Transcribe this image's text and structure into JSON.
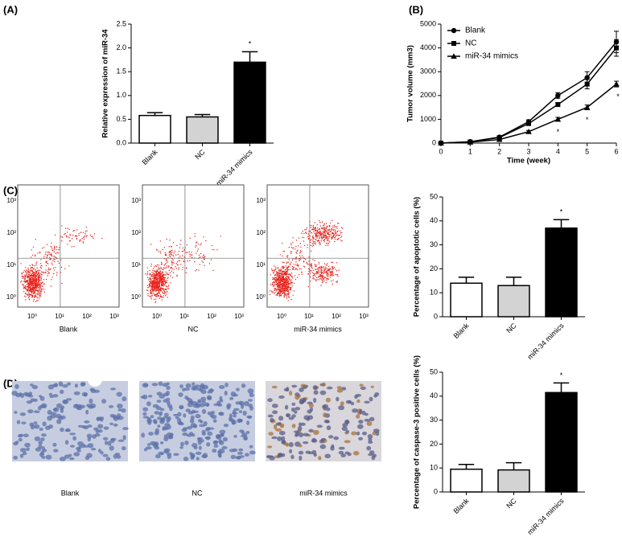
{
  "panel_labels": [
    "(A)",
    "(B)",
    "(C)",
    "(D)"
  ],
  "chart_data": [
    {
      "type": "bar",
      "y_label": "Relative expression  of miR-34",
      "categories": [
        "Blank",
        "NC",
        "miR-34 mimics"
      ],
      "values": [
        0.58,
        0.55,
        1.7
      ],
      "errors": [
        0.06,
        0.05,
        0.22
      ],
      "colors": [
        "#ffffff",
        "#d3d3d3",
        "#000000"
      ],
      "significance": [
        null,
        null,
        "*"
      ],
      "ylim": [
        0,
        2.5
      ],
      "yticks": [
        {
          "value": 0,
          "label": "0.0"
        },
        0.5,
        {
          "value": 1,
          "label": "1.0"
        },
        1.5,
        {
          "value": 2,
          "label": "2.0"
        },
        2.5
      ]
    },
    {
      "type": "line",
      "x_label": "Time (week)",
      "y_label": "Tumor volume (mm3)",
      "x": [
        0,
        1,
        2,
        3,
        4,
        5,
        6
      ],
      "xlim": [
        0,
        6
      ],
      "xticks": [
        0,
        1,
        2,
        3,
        4,
        5,
        6
      ],
      "ylim": [
        0,
        5000
      ],
      "yticks": [
        0,
        1000,
        2000,
        3000,
        4000,
        5000
      ],
      "legend": "upper-left",
      "series": [
        {
          "name": "Blank",
          "color": "#000000",
          "marker": "circle",
          "values": [
            0,
            60,
            250,
            900,
            2000,
            2750,
            4250
          ],
          "errors": [
            0,
            20,
            40,
            80,
            120,
            250,
            450
          ],
          "significance": [
            null,
            null,
            null,
            null,
            null,
            null,
            null
          ]
        },
        {
          "name": "NC",
          "color": "#000000",
          "marker": "square",
          "values": [
            0,
            50,
            230,
            820,
            1620,
            2480,
            4000
          ],
          "errors": [
            0,
            20,
            40,
            70,
            80,
            200,
            350
          ],
          "significance": [
            null,
            null,
            null,
            null,
            null,
            null,
            null
          ]
        },
        {
          "name": "miR-34 mimics",
          "color": "#000000",
          "marker": "triangle",
          "values": [
            0,
            40,
            150,
            480,
            1000,
            1500,
            2480
          ],
          "errors": [
            0,
            10,
            20,
            50,
            80,
            100,
            120
          ],
          "significance": [
            null,
            null,
            null,
            null,
            "*",
            "*",
            "*"
          ]
        }
      ]
    },
    {
      "type": "bar",
      "y_label": "Percentage of apoptotic cells (%)",
      "categories": [
        "Blank",
        "NC",
        "miR-34 mimics"
      ],
      "values": [
        14,
        13,
        37
      ],
      "errors": [
        2.5,
        3.5,
        3.5
      ],
      "colors": [
        "#ffffff",
        "#d3d3d3",
        "#000000"
      ],
      "significance": [
        null,
        null,
        "*"
      ],
      "ylim": [
        0,
        50
      ],
      "yticks": [
        0,
        10,
        20,
        30,
        40,
        50
      ]
    },
    {
      "type": "bar",
      "y_label": "Percentage of caspase-3 positive cells (%)",
      "categories": [
        "Blank",
        "NC",
        "miR-34 mimics"
      ],
      "values": [
        9.5,
        9.2,
        41.5
      ],
      "errors": [
        2,
        3,
        4
      ],
      "colors": [
        "#ffffff",
        "#d3d3d3",
        "#000000"
      ],
      "significance": [
        null,
        null,
        "*"
      ],
      "ylim": [
        0,
        50
      ],
      "yticks": [
        0,
        10,
        20,
        30,
        40,
        50
      ]
    }
  ],
  "flow_cytometry": {
    "ticks": [
      "10⁰",
      "10¹",
      "10²",
      "10³"
    ],
    "labels": [
      "Blank",
      "NC",
      "miR-34 mimics"
    ]
  },
  "ihc_images": {
    "labels": [
      "Blank",
      "NC",
      "miR-34 mimics"
    ]
  }
}
